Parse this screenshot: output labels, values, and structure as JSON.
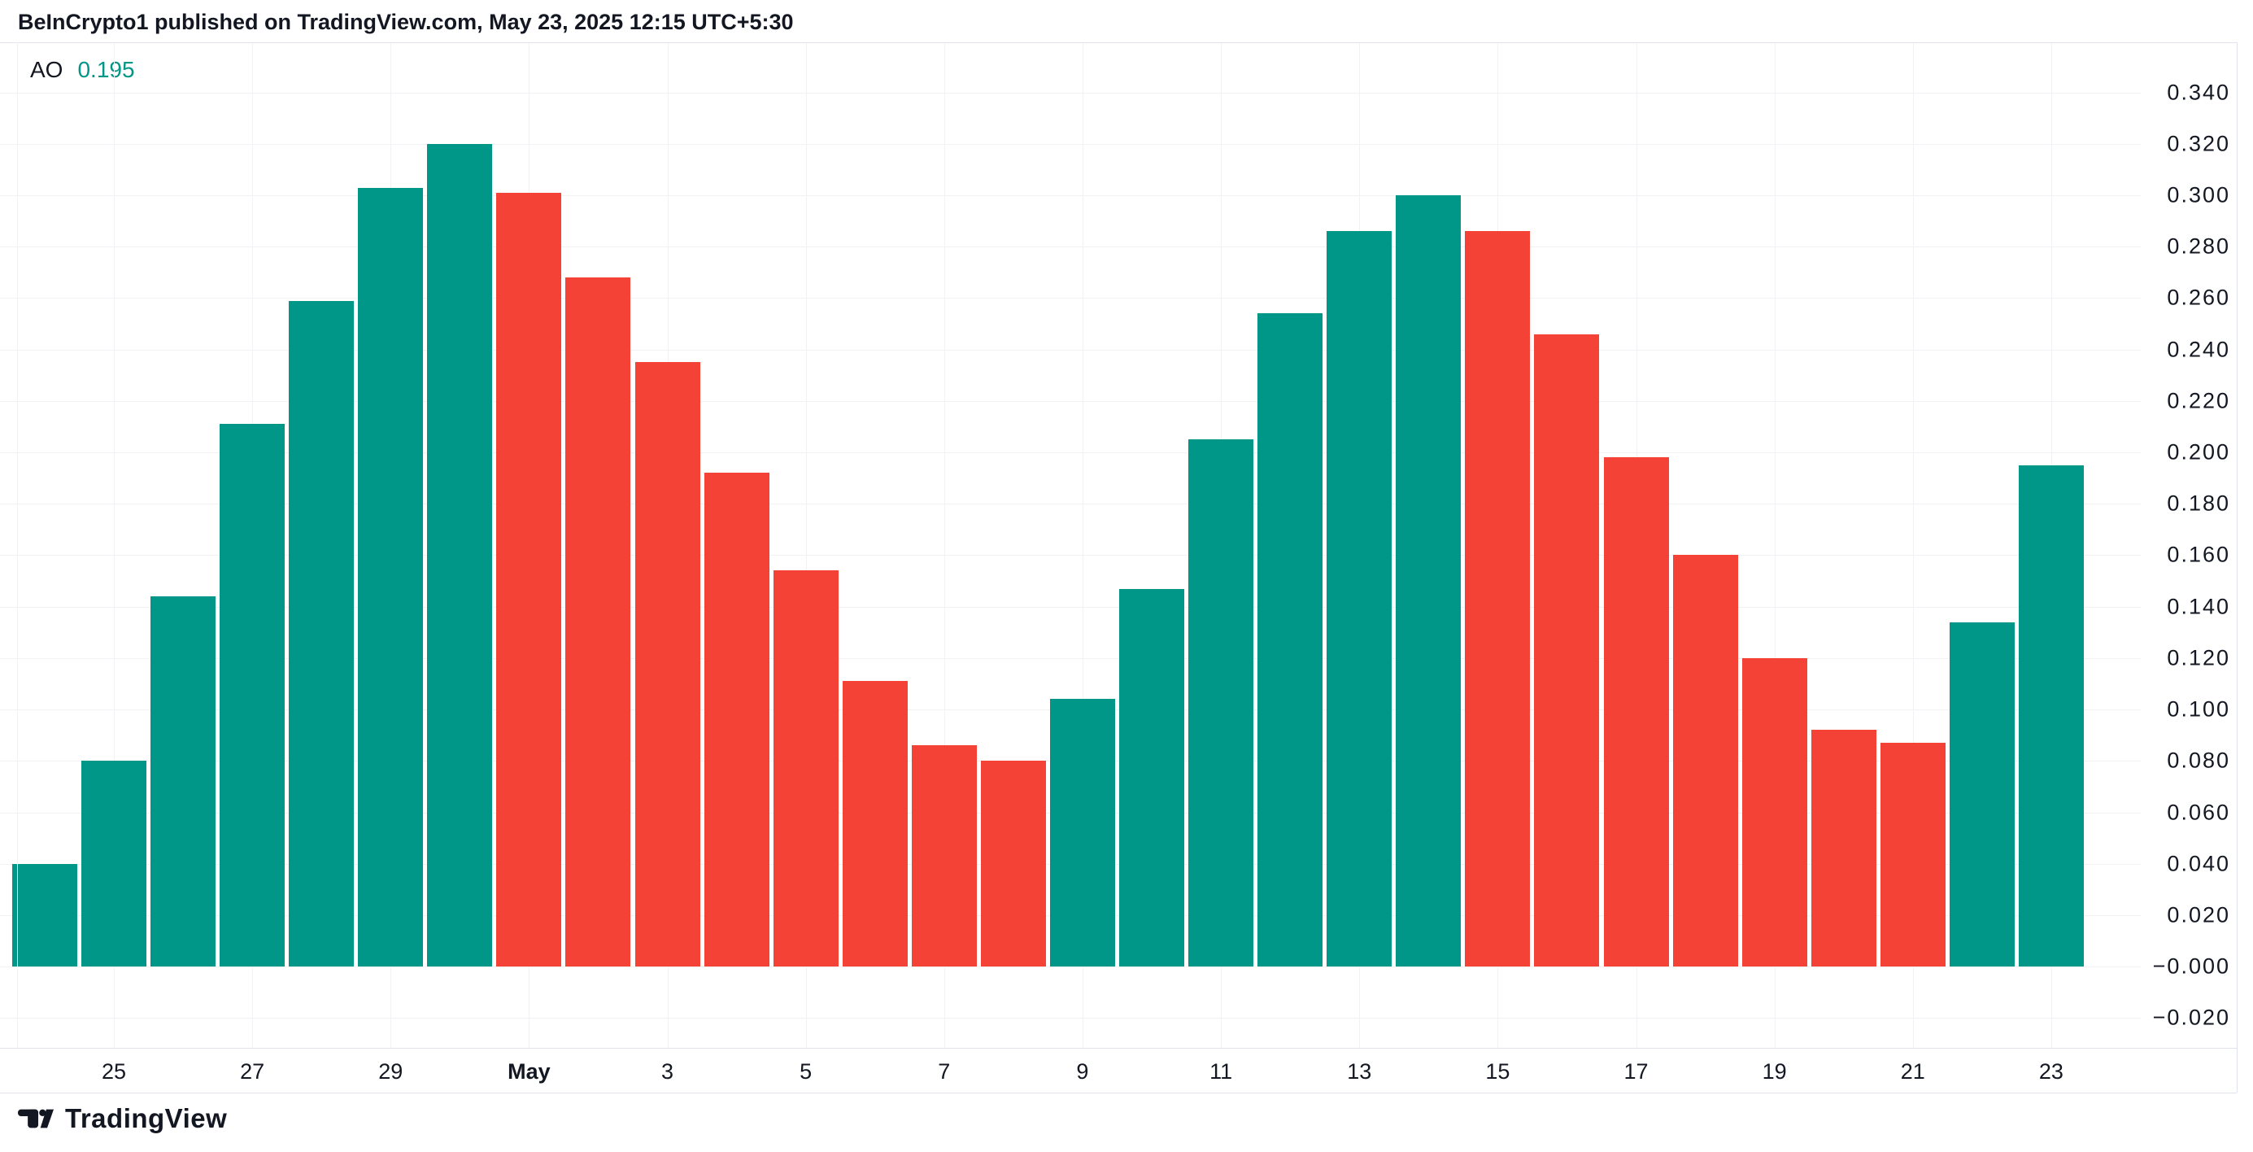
{
  "header": {
    "title": "BeInCrypto1 published on TradingView.com, May 23, 2025 12:15 UTC+5:30",
    "indicator_label": "AO",
    "indicator_value": "0.195"
  },
  "footer": {
    "logo_text": "TradingView"
  },
  "colors": {
    "up": "#009688",
    "down": "#F44336",
    "text": "#131722",
    "value_text": "#009688",
    "grid": "#F0F2F5",
    "border": "#E0E3EB",
    "background": "#FFFFFF"
  },
  "chart_data": {
    "type": "bar",
    "title": "AO (Awesome Oscillator) histogram",
    "xlabel": "",
    "ylabel": "",
    "grid": true,
    "legend_position": "top-left",
    "ylim": [
      -0.0316,
      0.3595
    ],
    "y_step": 0.02,
    "categories": [
      "Apr 24",
      "Apr 25",
      "Apr 26",
      "Apr 27",
      "Apr 28",
      "Apr 29",
      "Apr 30",
      "May 1",
      "May 2",
      "May 3",
      "May 4",
      "May 5",
      "May 6",
      "May 7",
      "May 8",
      "May 9",
      "May 10",
      "May 11",
      "May 12",
      "May 13",
      "May 14",
      "May 15",
      "May 16",
      "May 17",
      "May 18",
      "May 19",
      "May 20",
      "May 21",
      "May 22",
      "May 23"
    ],
    "values": [
      0.04,
      0.08,
      0.144,
      0.211,
      0.259,
      0.303,
      0.32,
      0.301,
      0.268,
      0.235,
      0.192,
      0.154,
      0.111,
      0.086,
      0.08,
      0.104,
      0.147,
      0.205,
      0.254,
      0.286,
      0.3,
      0.286,
      0.246,
      0.198,
      0.16,
      0.12,
      0.092,
      0.087,
      0.134,
      0.195
    ],
    "directions": [
      "up",
      "up",
      "up",
      "up",
      "up",
      "up",
      "up",
      "down",
      "down",
      "down",
      "down",
      "down",
      "down",
      "down",
      "down",
      "up",
      "up",
      "up",
      "up",
      "up",
      "up",
      "down",
      "down",
      "down",
      "down",
      "down",
      "down",
      "down",
      "up",
      "up"
    ],
    "x_ticks": [
      {
        "label": "25",
        "index": 1,
        "bold": false
      },
      {
        "label": "27",
        "index": 3,
        "bold": false
      },
      {
        "label": "29",
        "index": 5,
        "bold": false
      },
      {
        "label": "May",
        "index": 7,
        "bold": true
      },
      {
        "label": "3",
        "index": 9,
        "bold": false
      },
      {
        "label": "5",
        "index": 11,
        "bold": false
      },
      {
        "label": "7",
        "index": 13,
        "bold": false
      },
      {
        "label": "9",
        "index": 15,
        "bold": false
      },
      {
        "label": "11",
        "index": 17,
        "bold": false
      },
      {
        "label": "13",
        "index": 19,
        "bold": false
      },
      {
        "label": "15",
        "index": 21,
        "bold": false
      },
      {
        "label": "17",
        "index": 23,
        "bold": false
      },
      {
        "label": "19",
        "index": 25,
        "bold": false
      },
      {
        "label": "21",
        "index": 27,
        "bold": false
      },
      {
        "label": "23",
        "index": 29,
        "bold": false
      }
    ],
    "y_ticks": [
      {
        "label": "0.340",
        "value": 0.34
      },
      {
        "label": "0.320",
        "value": 0.32
      },
      {
        "label": "0.300",
        "value": 0.3
      },
      {
        "label": "0.280",
        "value": 0.28
      },
      {
        "label": "0.260",
        "value": 0.26
      },
      {
        "label": "0.240",
        "value": 0.24
      },
      {
        "label": "0.220",
        "value": 0.22
      },
      {
        "label": "0.200",
        "value": 0.2
      },
      {
        "label": "0.180",
        "value": 0.18
      },
      {
        "label": "0.160",
        "value": 0.16
      },
      {
        "label": "0.140",
        "value": 0.14
      },
      {
        "label": "0.120",
        "value": 0.12
      },
      {
        "label": "0.100",
        "value": 0.1
      },
      {
        "label": "0.080",
        "value": 0.08
      },
      {
        "label": "0.060",
        "value": 0.06
      },
      {
        "label": "0.040",
        "value": 0.04
      },
      {
        "label": "0.020",
        "value": 0.02
      },
      {
        "label": "−0.000",
        "value": 0.0
      },
      {
        "label": "−0.020",
        "value": -0.02
      }
    ]
  }
}
